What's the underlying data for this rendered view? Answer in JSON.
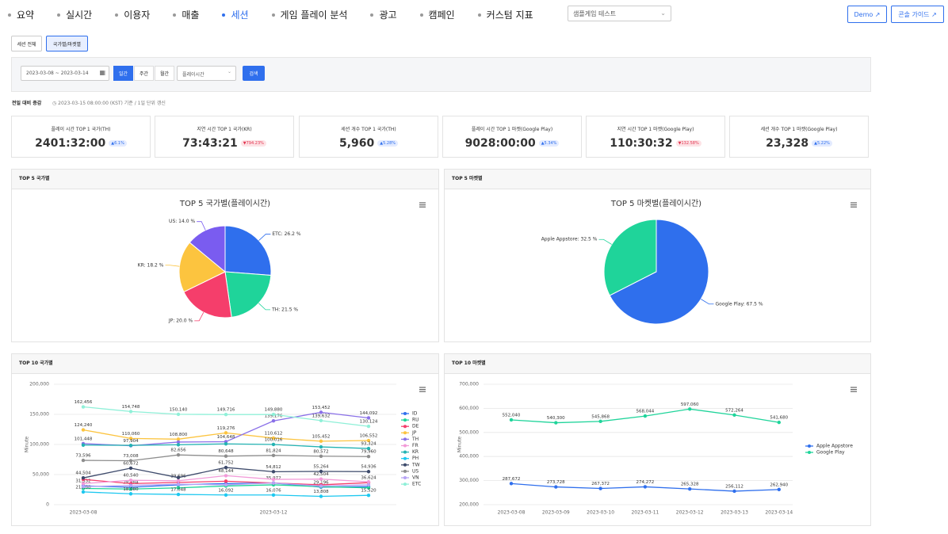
{
  "nav": {
    "items": [
      {
        "label": "요약"
      },
      {
        "label": "실시간"
      },
      {
        "label": "이용자"
      },
      {
        "label": "매출"
      },
      {
        "label": "세션",
        "active": true
      },
      {
        "label": "게임 플레이 분석"
      },
      {
        "label": "광고"
      },
      {
        "label": "캠페인"
      },
      {
        "label": "커스텀 지표"
      }
    ],
    "game_select": "샘플게임 테스트",
    "buttons": [
      "Demo",
      "콘솔 가이드"
    ]
  },
  "tabs": [
    {
      "label": "세션 전체"
    },
    {
      "label": "국가별/마켓별",
      "active": true
    }
  ],
  "filter": {
    "date_range": "2023-03-08 ~ 2023-03-14",
    "periods": [
      {
        "label": "일간",
        "active": true
      },
      {
        "label": "주간"
      },
      {
        "label": "월간"
      }
    ],
    "metric": "플레이시간",
    "search": "검색"
  },
  "summary": {
    "title": "전일 대비 증감",
    "note": "2023-03-15 08:00:00 (KST) 기준 / 1일 단위 갱신",
    "cards": [
      {
        "title": "플레이 시간 TOP 1 국가(TH)",
        "value": "2401:32:00",
        "change": "▲6.1%",
        "trend": "up"
      },
      {
        "title": "지연 시간 TOP 1 국가(KR)",
        "value": "73:43:21",
        "change": "▼794.23%",
        "trend": "down"
      },
      {
        "title": "세션 개수 TOP 1 국가(TH)",
        "value": "5,960",
        "change": "▲5.28%",
        "trend": "up"
      },
      {
        "title": "플레이 시간 TOP 1 마켓(Google Play)",
        "value": "9028:00:00",
        "change": "▲5.34%",
        "trend": "up"
      },
      {
        "title": "지연 시간 TOP 1 마켓(Google Play)",
        "value": "110:30:32",
        "change": "▼132.58%",
        "trend": "down"
      },
      {
        "title": "세션 개수 TOP 1 마켓(Google Play)",
        "value": "23,328",
        "change": "▲5.22%",
        "trend": "up"
      }
    ]
  },
  "panels": [
    "TOP 5 국가별",
    "TOP 5 마켓별",
    "TOP 10 국가별",
    "TOP 10 마켓별"
  ],
  "chart_data": [
    {
      "type": "pie",
      "title": "TOP 5 국가별(플레이시간)",
      "categories": [
        "ETC",
        "TH",
        "JP",
        "KR",
        "US"
      ],
      "values": [
        26.2,
        21.5,
        20.0,
        18.2,
        14.0
      ],
      "value_labels": [
        "ETC: 26.2 %",
        "TH: 21.5 %",
        "JP: 20.0 %",
        "KR: 18.2 %",
        "US: 14.0 %"
      ],
      "colors": [
        "#2f6fed",
        "#1fd49a",
        "#f53e6b",
        "#fcc43f",
        "#7a5cf0"
      ]
    },
    {
      "type": "pie",
      "title": "TOP 5 마켓별(플레이시간)",
      "categories": [
        "Google Play",
        "Apple Appstore"
      ],
      "values": [
        67.5,
        32.5
      ],
      "value_labels": [
        "Google Play: 67.5 %",
        "Apple Appstore: 32.5 %"
      ],
      "colors": [
        "#2f6fed",
        "#1fd49a"
      ]
    },
    {
      "type": "line",
      "y_label": "Minute",
      "legend": "right",
      "grid": true,
      "categories": [
        "2023-03-08",
        null,
        null,
        null,
        "2023-03-12",
        null,
        null
      ],
      "ylim": [
        0,
        200000
      ],
      "yticks": [
        0,
        {
          "value": 50000,
          "label": "50,000"
        },
        {
          "value": 100000,
          "label": "100,000"
        },
        {
          "value": 150000,
          "label": "150,000"
        },
        {
          "value": 200000,
          "label": "200,000"
        }
      ],
      "series": [
        {
          "name": "ID",
          "color": "#2f6fed",
          "values": [
            31332,
            28984,
            33000,
            35000,
            36000,
            29196,
            30000
          ],
          "value_labels": [
            "31,332",
            "28,984",
            null,
            null,
            null,
            "29,196",
            null
          ]
        },
        {
          "name": "RU",
          "color": "#1fd49a",
          "values": [
            27000,
            26000,
            28000,
            31000,
            33000,
            30000,
            28000
          ],
          "value_labels": [
            null,
            null,
            null,
            null,
            null,
            null,
            null
          ]
        },
        {
          "name": "DE",
          "color": "#f53e6b",
          "values": [
            42000,
            35000,
            37000,
            39000,
            35972,
            33000,
            36624
          ],
          "value_labels": [
            null,
            null,
            null,
            null,
            "35,972",
            null,
            "36,624"
          ]
        },
        {
          "name": "JP",
          "color": "#fcc43f",
          "values": [
            124240,
            110060,
            108800,
            119276,
            110612,
            105452,
            106552
          ],
          "value_labels": [
            "124,240",
            "110,060",
            "108,800",
            "119,276",
            "110,612",
            "105,452",
            "106,552"
          ]
        },
        {
          "name": "TH",
          "color": "#8a70e8",
          "values": [
            101448,
            97904,
            104000,
            104648,
            139176,
            153452,
            144092
          ],
          "value_labels": [
            "101,448",
            "97,904",
            null,
            "104,648",
            "139,176",
            "153,452",
            "144,092"
          ]
        },
        {
          "name": "FR",
          "color": "#f29ad8",
          "values": [
            35000,
            40540,
            39696,
            48144,
            42000,
            42504,
            38000
          ],
          "value_labels": [
            null,
            "40,540",
            "39,696",
            "48,144",
            null,
            "42,504",
            null
          ]
        },
        {
          "name": "KR",
          "color": "#24b3b3",
          "values": [
            99000,
            98500,
            99500,
            101000,
            100016,
            96000,
            93324
          ],
          "value_labels": [
            null,
            null,
            null,
            null,
            "100,016",
            null,
            "93,324"
          ]
        },
        {
          "name": "PH",
          "color": "#1ec8f0",
          "values": [
            21188,
            18080,
            17048,
            16092,
            16076,
            13808,
            15520
          ],
          "value_labels": [
            "21,188",
            "18,080",
            "17,048",
            "16,092",
            "16,076",
            "13,808",
            "15,520"
          ]
        },
        {
          "name": "TW",
          "color": "#3d4a6b",
          "values": [
            44504,
            60672,
            45000,
            61752,
            54812,
            55264,
            54936
          ],
          "value_labels": [
            "44,504",
            "60,672",
            null,
            "61,752",
            "54,812",
            "55,264",
            "54,936"
          ]
        },
        {
          "name": "US",
          "color": "#8e8e8e",
          "values": [
            73596,
            73008,
            82656,
            80648,
            81824,
            80572,
            79960
          ],
          "value_labels": [
            "73,596",
            "73,008",
            "82,656",
            "80,648",
            "81,824",
            "80,572",
            "79,960"
          ]
        },
        {
          "name": "VN",
          "color": "#b7a3f5",
          "values": [
            30000,
            32000,
            34000,
            33000,
            36000,
            31000,
            33000
          ],
          "value_labels": [
            null,
            null,
            null,
            null,
            null,
            null,
            null
          ]
        },
        {
          "name": "ETC",
          "color": "#8ff0d8",
          "values": [
            162456,
            154748,
            150140,
            149716,
            149880,
            139632,
            130124
          ],
          "value_labels": [
            "162,456",
            "154,748",
            "150,140",
            "149,716",
            "149,880",
            "139,632",
            "130,124"
          ]
        }
      ]
    },
    {
      "type": "line",
      "y_label": "Minute",
      "legend": "right",
      "grid": true,
      "categories": [
        "2023-03-08",
        "2023-03-09",
        "2023-03-10",
        "2023-03-11",
        "2023-03-12",
        "2023-03-13",
        "2023-03-14"
      ],
      "ylim": [
        200000,
        700000
      ],
      "yticks": [
        {
          "value": 200000,
          "label": "200,000"
        },
        {
          "value": 300000,
          "label": "300,000"
        },
        {
          "value": 400000,
          "label": "400,000"
        },
        {
          "value": 500000,
          "label": "500,000"
        },
        {
          "value": 600000,
          "label": "600,000"
        },
        {
          "value": 700000,
          "label": "700,000"
        }
      ],
      "series": [
        {
          "name": "Apple Appstore",
          "color": "#2f6fed",
          "values": [
            287672,
            273728,
            267372,
            274272,
            265328,
            256112,
            262940
          ],
          "value_labels": [
            "287,672",
            "273,728",
            "267,372",
            "274,272",
            "265,328",
            "256,112",
            "262,940"
          ]
        },
        {
          "name": "Google Play",
          "color": "#1fd49a",
          "values": [
            552040,
            540300,
            545868,
            568044,
            597060,
            572264,
            541680
          ],
          "value_labels": [
            "552,040",
            "540,300",
            "545,868",
            "568,044",
            "597,060",
            "572,264",
            "541,680"
          ]
        }
      ]
    }
  ]
}
